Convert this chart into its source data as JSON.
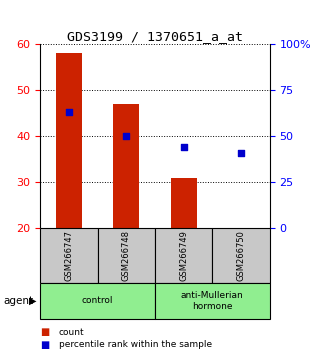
{
  "title": "GDS3199 / 1370651_a_at",
  "samples": [
    "GSM266747",
    "GSM266748",
    "GSM266749",
    "GSM266750"
  ],
  "bar_values": [
    58,
    47,
    31,
    20
  ],
  "percentile_values": [
    63,
    50,
    44,
    41
  ],
  "bar_color": "#cc2200",
  "percentile_color": "#0000cc",
  "ylim_left": [
    20,
    60
  ],
  "ylim_right": [
    0,
    100
  ],
  "yticks_left": [
    20,
    30,
    40,
    50,
    60
  ],
  "yticks_right": [
    0,
    25,
    50,
    75,
    100
  ],
  "yticklabels_right": [
    "0",
    "25",
    "50",
    "75",
    "100%"
  ],
  "groups": [
    {
      "label": "control",
      "samples": [
        0,
        1
      ],
      "color": "#90ee90"
    },
    {
      "label": "anti-Mullerian\nhormone",
      "samples": [
        2,
        3
      ],
      "color": "#90ee90"
    }
  ],
  "agent_label": "agent",
  "legend_count_label": "count",
  "legend_pct_label": "percentile rank within the sample",
  "bar_width": 0.45,
  "sample_box_color": "#c8c8c8",
  "background_color": "#ffffff"
}
